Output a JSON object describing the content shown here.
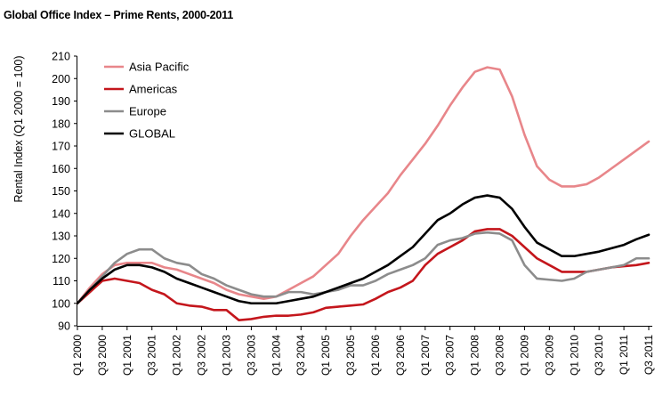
{
  "chart_data": {
    "type": "line",
    "title": "Global Office Index – Prime Rents, 2000-2011",
    "ylabel": "Rental Index (Q1 2000 = 100)",
    "xlabel": "",
    "ylim": [
      90,
      210
    ],
    "yticks": [
      90,
      100,
      110,
      120,
      130,
      140,
      150,
      160,
      170,
      180,
      190,
      200,
      210
    ],
    "legend_position": "top-left",
    "grid": false,
    "x": [
      "Q1 2000",
      "Q2 2000",
      "Q3 2000",
      "Q4 2000",
      "Q1 2001",
      "Q2 2001",
      "Q3 2001",
      "Q4 2001",
      "Q1 2002",
      "Q2 2002",
      "Q3 2002",
      "Q4 2002",
      "Q1 2003",
      "Q2 2003",
      "Q3 2003",
      "Q4 2003",
      "Q1 2004",
      "Q2 2004",
      "Q3 2004",
      "Q4 2004",
      "Q1 2005",
      "Q2 2005",
      "Q3 2005",
      "Q4 2005",
      "Q1 2006",
      "Q2 2006",
      "Q3 2006",
      "Q4 2006",
      "Q1 2007",
      "Q2 2007",
      "Q3 2007",
      "Q4 2007",
      "Q1 2008",
      "Q2 2008",
      "Q3 2008",
      "Q4 2008",
      "Q1 2009",
      "Q2 2009",
      "Q3 2009",
      "Q4 2009",
      "Q1 2010",
      "Q2 2010",
      "Q3 2010",
      "Q4 2010",
      "Q1 2011",
      "Q2 2011",
      "Q3 2011"
    ],
    "x_tick_labels": [
      "Q1 2000",
      "Q3 2000",
      "Q1 2001",
      "Q3 2001",
      "Q1 2002",
      "Q3 2002",
      "Q1 2003",
      "Q3 2003",
      "Q1 2004",
      "Q3 2004",
      "Q1 2005",
      "Q3 2005",
      "Q1 2006",
      "Q3 2006",
      "Q1 2007",
      "Q3 2007",
      "Q1 2008",
      "Q3 2008",
      "Q1 2009",
      "Q3 2009",
      "Q1 2010",
      "Q3 2010",
      "Q1 2011",
      "Q3 2011"
    ],
    "series": [
      {
        "name": "Asia Pacific",
        "color": "#e8868a",
        "values": [
          100,
          107,
          113,
          117,
          118,
          118,
          118,
          116,
          115,
          113,
          111,
          109,
          106,
          104,
          103,
          102,
          103,
          106,
          109,
          112,
          117,
          122,
          130,
          137,
          143,
          149,
          157,
          164,
          171,
          179,
          188,
          196,
          203,
          205,
          204,
          192,
          175,
          161,
          155,
          152,
          152,
          153,
          156,
          160,
          164,
          168,
          172
        ]
      },
      {
        "name": "Americas",
        "color": "#c4161c",
        "values": [
          100,
          105,
          110,
          111,
          110,
          109,
          106,
          104,
          100,
          99,
          98.5,
          97,
          97,
          92.5,
          93,
          94,
          94.5,
          94.5,
          95,
          96,
          98,
          98.5,
          99,
          99.5,
          102,
          105,
          107,
          110,
          117,
          122,
          125,
          128,
          132,
          133,
          133,
          130,
          125,
          120,
          117,
          114,
          114,
          114,
          115,
          116,
          116.5,
          117,
          118
        ]
      },
      {
        "name": "Europe",
        "color": "#8c8c8c",
        "values": [
          100,
          106,
          112,
          118,
          122,
          124,
          124,
          120,
          118,
          117,
          113,
          111,
          108,
          106,
          104,
          103,
          103,
          105,
          105,
          104,
          105,
          106,
          108,
          108,
          110,
          113,
          115,
          117,
          120,
          126,
          128,
          129,
          131,
          131.5,
          131,
          128,
          117,
          111,
          110.5,
          110,
          111,
          114,
          115,
          116,
          117,
          120,
          120
        ]
      },
      {
        "name": "GLOBAL",
        "color": "#000000",
        "values": [
          100,
          106,
          111,
          115,
          117,
          117,
          116,
          114,
          111,
          109,
          107,
          105,
          103,
          101,
          100,
          100,
          100,
          101,
          102,
          103,
          105,
          107,
          109,
          111,
          114,
          117,
          121,
          125,
          131,
          137,
          140,
          144,
          147,
          148,
          147,
          142,
          134,
          127,
          124,
          121,
          121,
          122,
          123,
          124.5,
          126,
          128.5,
          130.5
        ]
      }
    ]
  }
}
